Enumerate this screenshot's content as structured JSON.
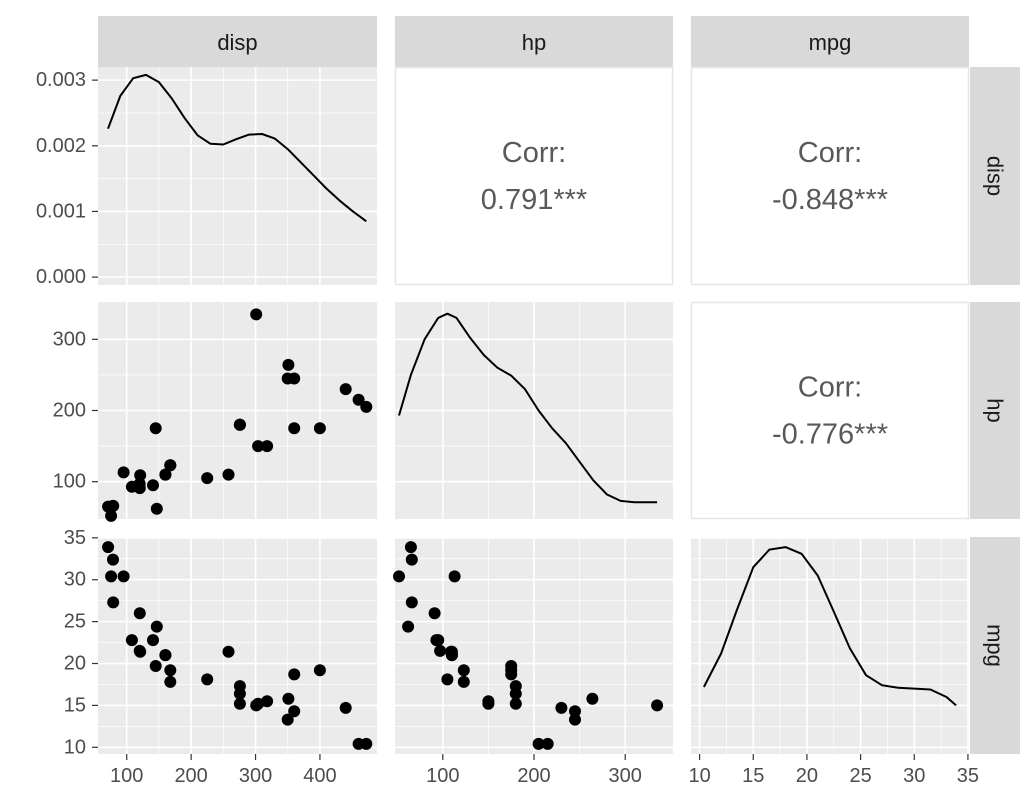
{
  "chart_data": {
    "type": "scatter",
    "variables": [
      "disp",
      "hp",
      "mpg"
    ],
    "columns": [
      {
        "name": "disp",
        "xlim": [
          55.4,
          488.6
        ],
        "ticks": [
          100,
          200,
          300,
          400
        ]
      },
      {
        "name": "hp",
        "xlim": [
          47.6,
          352.4
        ],
        "ticks": [
          100,
          200,
          300
        ]
      },
      {
        "name": "mpg",
        "xlim": [
          9.2,
          35.1
        ],
        "ticks": [
          10,
          15,
          20,
          25,
          30,
          35
        ]
      }
    ],
    "rows": [
      {
        "name": "disp",
        "ylim": [
          -0.00012,
          0.0032
        ],
        "ticks": [
          0.0,
          0.001,
          0.002,
          0.003
        ],
        "tick_labels": [
          "0.000",
          "0.001",
          "0.002",
          "0.003"
        ]
      },
      {
        "name": "hp",
        "ylim": [
          47.6,
          352.4
        ],
        "ticks": [
          100,
          200,
          300
        ],
        "tick_labels": [
          "100",
          "200",
          "300"
        ]
      },
      {
        "name": "mpg",
        "ylim": [
          9.2,
          35.1
        ],
        "ticks": [
          10,
          15,
          20,
          25,
          30,
          35
        ],
        "tick_labels": [
          "10",
          "15",
          "20",
          "25",
          "30",
          "35"
        ]
      }
    ],
    "correlations": [
      {
        "row": "disp",
        "col": "hp",
        "label": "Corr:",
        "value": "0.791***"
      },
      {
        "row": "disp",
        "col": "mpg",
        "label": "Corr:",
        "value": "-0.848***"
      },
      {
        "row": "hp",
        "col": "mpg",
        "label": "Corr:",
        "value": "-0.776***"
      }
    ],
    "densities": {
      "disp": {
        "x": [
          71,
          90,
          110,
          130,
          150,
          170,
          190,
          210,
          230,
          250,
          270,
          290,
          310,
          330,
          350,
          370,
          390,
          410,
          430,
          450,
          472
        ],
        "y": [
          0.00226,
          0.00276,
          0.00303,
          0.00308,
          0.00297,
          0.00272,
          0.00242,
          0.00216,
          0.00203,
          0.00202,
          0.0021,
          0.00217,
          0.00218,
          0.00211,
          0.00195,
          0.00175,
          0.00155,
          0.00135,
          0.00117,
          0.00101,
          0.00085
        ]
      },
      "hp": {
        "x": [
          52,
          65,
          80,
          95,
          105,
          115,
          130,
          145,
          160,
          175,
          190,
          205,
          220,
          235,
          250,
          265,
          280,
          295,
          310,
          325,
          335
        ],
        "y": [
          193,
          250,
          300,
          330,
          336,
          330,
          302,
          278,
          260,
          249,
          230,
          200,
          175,
          154,
          128,
          102,
          82,
          73,
          71,
          71,
          71
        ]
      },
      "mpg": {
        "x": [
          10.4,
          12,
          13.5,
          15,
          16.5,
          18,
          19.5,
          21,
          22.5,
          24,
          25.5,
          27,
          28.5,
          30,
          31.5,
          33,
          33.9
        ],
        "y": [
          17.2,
          21.2,
          26.5,
          31.5,
          33.6,
          33.9,
          33.1,
          30.5,
          26.2,
          21.8,
          18.6,
          17.4,
          17.1,
          17.0,
          16.9,
          16.0,
          15.0
        ]
      }
    },
    "points": [
      {
        "disp": 160,
        "hp": 110,
        "mpg": 21.0
      },
      {
        "disp": 160,
        "hp": 110,
        "mpg": 21.0
      },
      {
        "disp": 108,
        "hp": 93,
        "mpg": 22.8
      },
      {
        "disp": 258,
        "hp": 110,
        "mpg": 21.4
      },
      {
        "disp": 360,
        "hp": 175,
        "mpg": 18.7
      },
      {
        "disp": 225,
        "hp": 105,
        "mpg": 18.1
      },
      {
        "disp": 360,
        "hp": 245,
        "mpg": 14.3
      },
      {
        "disp": 146.7,
        "hp": 62,
        "mpg": 24.4
      },
      {
        "disp": 140.8,
        "hp": 95,
        "mpg": 22.8
      },
      {
        "disp": 167.6,
        "hp": 123,
        "mpg": 19.2
      },
      {
        "disp": 167.6,
        "hp": 123,
        "mpg": 17.8
      },
      {
        "disp": 275.8,
        "hp": 180,
        "mpg": 16.4
      },
      {
        "disp": 275.8,
        "hp": 180,
        "mpg": 17.3
      },
      {
        "disp": 275.8,
        "hp": 180,
        "mpg": 15.2
      },
      {
        "disp": 472,
        "hp": 205,
        "mpg": 10.4
      },
      {
        "disp": 460,
        "hp": 215,
        "mpg": 10.4
      },
      {
        "disp": 440,
        "hp": 230,
        "mpg": 14.7
      },
      {
        "disp": 78.7,
        "hp": 66,
        "mpg": 32.4
      },
      {
        "disp": 75.7,
        "hp": 52,
        "mpg": 30.4
      },
      {
        "disp": 71.1,
        "hp": 65,
        "mpg": 33.9
      },
      {
        "disp": 120.1,
        "hp": 97,
        "mpg": 21.5
      },
      {
        "disp": 318,
        "hp": 150,
        "mpg": 15.5
      },
      {
        "disp": 304,
        "hp": 150,
        "mpg": 15.2
      },
      {
        "disp": 350,
        "hp": 245,
        "mpg": 13.3
      },
      {
        "disp": 400,
        "hp": 175,
        "mpg": 19.2
      },
      {
        "disp": 79,
        "hp": 66,
        "mpg": 27.3
      },
      {
        "disp": 120.3,
        "hp": 91,
        "mpg": 26.0
      },
      {
        "disp": 95.1,
        "hp": 113,
        "mpg": 30.4
      },
      {
        "disp": 351,
        "hp": 264,
        "mpg": 15.8
      },
      {
        "disp": 145,
        "hp": 175,
        "mpg": 19.7
      },
      {
        "disp": 301,
        "hp": 335,
        "mpg": 15.0
      },
      {
        "disp": 121,
        "hp": 109,
        "mpg": 21.4
      }
    ]
  }
}
